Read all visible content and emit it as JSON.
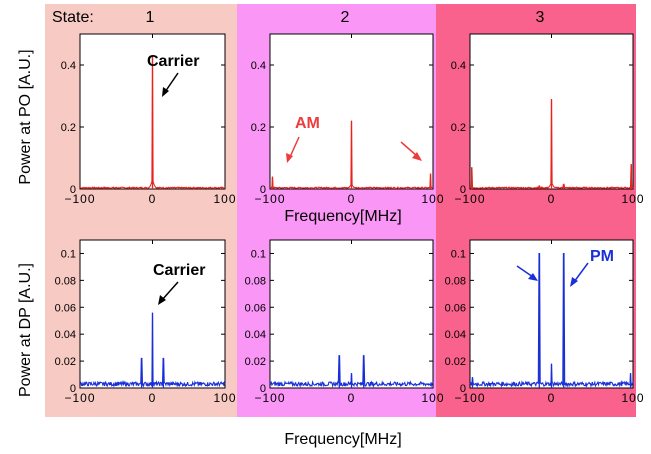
{
  "figure": {
    "state_label": "State:",
    "states": [
      "1",
      "2",
      "3"
    ],
    "state_colors": [
      "#f8cac4",
      "#fa96f6",
      "#f9628c"
    ],
    "x_axis_label": "Frequency[MHz]",
    "x_axis_label_bottom": "Frequency[MHz]",
    "y_label_top": "Power at PO [A.U.]",
    "y_label_bottom": "Power at DP [A.U.]",
    "annotations": {
      "carrier_top": "Carrier",
      "am": "AM",
      "carrier_bottom": "Carrier",
      "pm": "PM"
    },
    "colors": {
      "top_trace": "#e8231e",
      "bottom_trace": "#1a2fd6",
      "am_text": "#ee3b3b",
      "pm_text": "#1a2fd6",
      "annotation_text": "#000000"
    }
  },
  "chart_data": [
    {
      "type": "line",
      "row": "top",
      "state": "1",
      "xlim": [
        -100,
        100
      ],
      "ylim": [
        0,
        0.5
      ],
      "xticks": [
        -100,
        0,
        100
      ],
      "yticks": [
        0,
        0.2,
        0.4
      ],
      "ylabel": "Power at PO [A.U.]",
      "peaks": [
        {
          "x": 0,
          "y": 0.43
        }
      ],
      "baseline": 0.004,
      "series_color": "#e8231e"
    },
    {
      "type": "line",
      "row": "top",
      "state": "2",
      "xlim": [
        -100,
        100
      ],
      "ylim": [
        0,
        0.5
      ],
      "xticks": [
        -100,
        0,
        100
      ],
      "yticks": [
        0,
        0.2,
        0.4
      ],
      "xlabel": "Frequency[MHz]",
      "peaks": [
        {
          "x": -97,
          "y": 0.04
        },
        {
          "x": 0,
          "y": 0.22
        },
        {
          "x": 97,
          "y": 0.05
        }
      ],
      "baseline": 0.004,
      "series_color": "#e8231e"
    },
    {
      "type": "line",
      "row": "top",
      "state": "3",
      "xlim": [
        -100,
        100
      ],
      "ylim": [
        0,
        0.5
      ],
      "xticks": [
        -100,
        0,
        100
      ],
      "yticks": [
        0,
        0.2,
        0.4
      ],
      "peaks": [
        {
          "x": -98,
          "y": 0.07
        },
        {
          "x": -15,
          "y": 0.01
        },
        {
          "x": 0,
          "y": 0.29
        },
        {
          "x": 15,
          "y": 0.015
        },
        {
          "x": 98,
          "y": 0.08
        }
      ],
      "baseline": 0.004,
      "series_color": "#e8231e"
    },
    {
      "type": "line",
      "row": "bottom",
      "state": "1",
      "xlim": [
        -100,
        100
      ],
      "ylim": [
        0,
        0.11
      ],
      "xticks": [
        -100,
        0,
        100
      ],
      "yticks": [
        0,
        0.02,
        0.04,
        0.06,
        0.08,
        0.1
      ],
      "ylabel": "Power at DP [A.U.]",
      "peaks": [
        {
          "x": -15,
          "y": 0.022
        },
        {
          "x": 0,
          "y": 0.056
        },
        {
          "x": 15,
          "y": 0.022
        }
      ],
      "baseline": 0.003,
      "series_color": "#1a2fd6"
    },
    {
      "type": "line",
      "row": "bottom",
      "state": "2",
      "xlim": [
        -100,
        100
      ],
      "ylim": [
        0,
        0.11
      ],
      "xticks": [
        -100,
        0,
        100
      ],
      "yticks": [
        0,
        0.02,
        0.04,
        0.06,
        0.08,
        0.1
      ],
      "peaks": [
        {
          "x": -15,
          "y": 0.024
        },
        {
          "x": 0,
          "y": 0.011
        },
        {
          "x": 15,
          "y": 0.024
        }
      ],
      "baseline": 0.003,
      "series_color": "#1a2fd6"
    },
    {
      "type": "line",
      "row": "bottom",
      "state": "3",
      "xlim": [
        -100,
        100
      ],
      "ylim": [
        0,
        0.11
      ],
      "xticks": [
        -100,
        0,
        100
      ],
      "yticks": [
        0,
        0.02,
        0.04,
        0.06,
        0.08,
        0.1
      ],
      "peaks": [
        {
          "x": -97,
          "y": 0.008
        },
        {
          "x": -15,
          "y": 0.1
        },
        {
          "x": 0,
          "y": 0.018
        },
        {
          "x": 15,
          "y": 0.1
        },
        {
          "x": 97,
          "y": 0.011
        }
      ],
      "baseline": 0.003,
      "series_color": "#1a2fd6"
    }
  ]
}
